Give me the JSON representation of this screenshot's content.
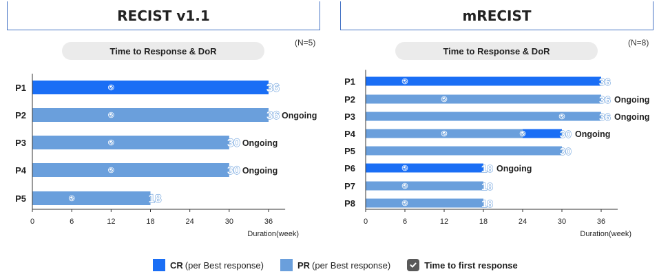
{
  "colors": {
    "cr": "#1a6ef5",
    "pr": "#6a9fdc",
    "marker_check": "#ffffff",
    "axis": "#333333",
    "text": "#222222"
  },
  "left_panel": {
    "header": "RECIST v1.1",
    "subtitle": "Time to Response & DoR",
    "n_label": "(N=5)"
  },
  "right_panel": {
    "header": "mRECIST",
    "subtitle": "Time to Response & DoR",
    "n_label": "(N=8)"
  },
  "legend": {
    "cr_bold": "CR",
    "cr_rest": "(per Best response)",
    "pr_bold": "PR",
    "pr_rest": "(per Best response)",
    "marker_label": "Time to first response"
  },
  "chart_data": [
    {
      "type": "bar",
      "orientation": "horizontal",
      "title": "RECIST v1.1",
      "subtitle": "Time to Response & DoR",
      "xlabel": "Duration(week)",
      "xlim": [
        0,
        40
      ],
      "xticks": [
        0,
        6,
        12,
        18,
        24,
        30,
        36
      ],
      "categories": [
        "P1",
        "P2",
        "P3",
        "P4",
        "P5"
      ],
      "values": [
        36,
        36,
        30,
        30,
        18
      ],
      "best_response": [
        "CR",
        "PR",
        "PR",
        "PR",
        "PR"
      ],
      "time_to_first_response": [
        [
          12
        ],
        [
          12
        ],
        [
          12
        ],
        [
          12
        ],
        [
          6
        ]
      ],
      "cr_segment_start": [
        0,
        null,
        null,
        null,
        null
      ],
      "status": [
        "",
        "Ongoing",
        "Ongoing",
        "Ongoing",
        ""
      ],
      "grid": false
    },
    {
      "type": "bar",
      "orientation": "horizontal",
      "title": "mRECIST",
      "subtitle": "Time to Response & DoR",
      "xlabel": "Duration(week)",
      "xlim": [
        0,
        40
      ],
      "xticks": [
        0,
        6,
        12,
        18,
        24,
        30,
        36
      ],
      "categories": [
        "P1",
        "P2",
        "P3",
        "P4",
        "P5",
        "P6",
        "P7",
        "P8"
      ],
      "values": [
        36,
        36,
        36,
        30,
        30,
        18,
        18,
        18
      ],
      "best_response": [
        "CR",
        "PR",
        "PR",
        "CR",
        "PR",
        "CR",
        "PR",
        "PR"
      ],
      "time_to_first_response": [
        [
          6
        ],
        [
          12
        ],
        [
          30
        ],
        [
          12,
          24
        ],
        [],
        [
          6
        ],
        [
          6
        ],
        [
          6
        ]
      ],
      "cr_segment_start": [
        0,
        null,
        null,
        24,
        null,
        0,
        null,
        null
      ],
      "status": [
        "",
        "Ongoing",
        "Ongoing",
        "Ongoing",
        "",
        "Ongoing",
        "",
        ""
      ],
      "grid": false
    }
  ]
}
